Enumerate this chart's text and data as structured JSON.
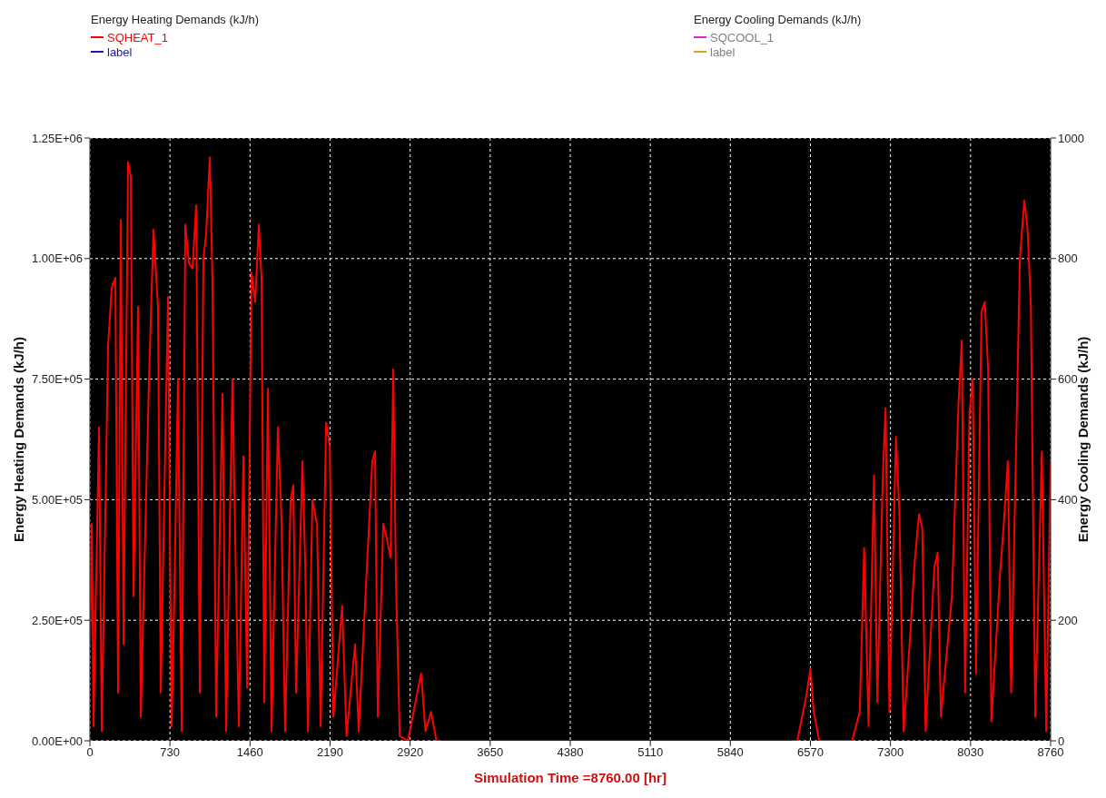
{
  "chart_data": {
    "type": "line",
    "xlabel": "Simulation Time =8760.00 [hr]",
    "ylabel": "Energy Heating Demands (kJ/h)",
    "y2label": "Energy Cooling Demands (kJ/h)",
    "xlim": [
      0,
      8760
    ],
    "xticks": [
      0,
      730,
      1460,
      2190,
      2920,
      3650,
      4380,
      5110,
      5840,
      6570,
      7300,
      8030,
      8760
    ],
    "ylim": [
      0,
      1250000
    ],
    "yticks": [
      {
        "value": 0,
        "label": "0.00E+00"
      },
      {
        "value": 250000,
        "label": "2.50E+05"
      },
      {
        "value": 500000,
        "label": "5.00E+05"
      },
      {
        "value": 750000,
        "label": "7.50E+05"
      },
      {
        "value": 1000000,
        "label": "1.00E+06"
      },
      {
        "value": 1250000,
        "label": "1.25E+06"
      }
    ],
    "y2lim": [
      0,
      1000
    ],
    "y2ticks": [
      0,
      200,
      400,
      600,
      800,
      1000
    ],
    "grid": true,
    "legend": "top",
    "marker": "none",
    "line_style": "solid",
    "series": [
      {
        "name": "SQHEAT_1",
        "color": "#ff0000",
        "x": [
          0,
          17,
          33,
          83,
          108,
          166,
          199,
          232,
          257,
          282,
          307,
          348,
          373,
          398,
          439,
          464,
          539,
          580,
          621,
          646,
          712,
          745,
          770,
          803,
          837,
          870,
          903,
          936,
          969,
          1002,
          1035,
          1060,
          1093,
          1118,
          1151,
          1209,
          1242,
          1300,
          1325,
          1358,
          1400,
          1433,
          1474,
          1507,
          1540,
          1565,
          1590,
          1623,
          1656,
          1714,
          1747,
          1780,
          1830,
          1855,
          1880,
          1938,
          1963,
          1988,
          2029,
          2071,
          2104,
          2154,
          2187,
          2220,
          2300,
          2340,
          2418,
          2451,
          2526,
          2575,
          2600,
          2625,
          2675,
          2708,
          2741,
          2766,
          2791,
          2825,
          2900,
          3020,
          3060,
          3110,
          3160,
          6450,
          6530,
          6570,
          6600,
          6650,
          6950,
          7020,
          7060,
          7100,
          7150,
          7180,
          7230,
          7255,
          7290,
          7350,
          7380,
          7420,
          7480,
          7520,
          7560,
          7590,
          7620,
          7700,
          7730,
          7760,
          7860,
          7890,
          7920,
          7950,
          7980,
          8020,
          8050,
          8080,
          8130,
          8160,
          8190,
          8220,
          8300,
          8330,
          8370,
          8400,
          8480,
          8520,
          8550,
          8580,
          8620,
          8680,
          8720,
          8760
        ],
        "values": [
          200000,
          450000,
          30000,
          650000,
          20000,
          820000,
          940000,
          960000,
          100000,
          1080000,
          200000,
          1200000,
          1170000,
          300000,
          900000,
          50000,
          750000,
          1060000,
          900000,
          100000,
          920000,
          30000,
          300000,
          750000,
          20000,
          1070000,
          990000,
          980000,
          1110000,
          100000,
          1000000,
          1050000,
          1210000,
          950000,
          50000,
          720000,
          20000,
          750000,
          420000,
          30000,
          590000,
          110000,
          970000,
          910000,
          1070000,
          960000,
          80000,
          730000,
          20000,
          650000,
          460000,
          20000,
          500000,
          530000,
          100000,
          580000,
          370000,
          20000,
          500000,
          450000,
          30000,
          660000,
          610000,
          50000,
          280000,
          10000,
          200000,
          20000,
          360000,
          580000,
          600000,
          50000,
          450000,
          420000,
          380000,
          770000,
          330000,
          10000,
          0,
          140000,
          20000,
          60000,
          0,
          0,
          90000,
          150000,
          60000,
          0,
          0,
          60000,
          400000,
          30000,
          550000,
          80000,
          550000,
          690000,
          60000,
          630000,
          480000,
          20000,
          220000,
          370000,
          470000,
          440000,
          20000,
          360000,
          390000,
          50000,
          300000,
          500000,
          700000,
          830000,
          100000,
          680000,
          750000,
          140000,
          890000,
          910000,
          770000,
          40000,
          350000,
          440000,
          580000,
          100000,
          1000000,
          1120000,
          1060000,
          900000,
          50000,
          600000,
          20000,
          580000
        ]
      },
      {
        "name": "label",
        "color": "#1a1aa6",
        "x": [
          3200,
          6400
        ],
        "values": [
          0,
          0
        ]
      },
      {
        "name": "SQCOOL_1",
        "color": "#e020e0",
        "axis": "y2",
        "values": [
          null
        ]
      },
      {
        "name": "label",
        "color": "#e0a020",
        "axis": "y2",
        "values": [
          null
        ]
      }
    ]
  }
}
